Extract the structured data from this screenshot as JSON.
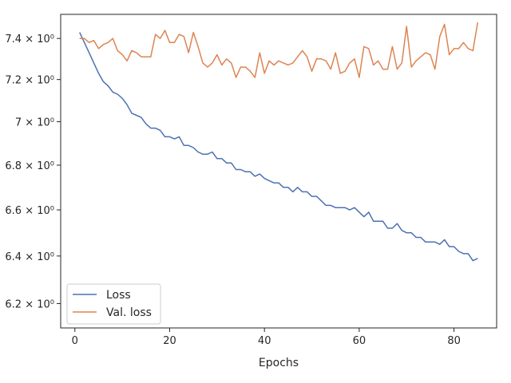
{
  "chart_data": {
    "type": "line",
    "title": "",
    "xlabel": "Epochs",
    "ylabel": "",
    "xlim": [
      -3,
      89
    ],
    "ylim": [
      6.1,
      7.52
    ],
    "yscale": "log",
    "grid": false,
    "legend_position": "lower-left",
    "x_ticks": [
      0,
      20,
      40,
      60,
      80
    ],
    "x_tick_labels": [
      "0",
      "20",
      "40",
      "60",
      "80"
    ],
    "y_ticks": [
      6.2,
      6.4,
      6.6,
      6.8,
      7.0,
      7.2,
      7.4
    ],
    "y_tick_labels": [
      "6.2 × 10⁰",
      "6.4 × 10⁰",
      "6.6 × 10⁰",
      "6.8 × 10⁰",
      "7 × 10⁰",
      "7.2 × 10⁰",
      "7.4 × 10⁰"
    ],
    "x": [
      1,
      2,
      3,
      4,
      5,
      6,
      7,
      8,
      9,
      10,
      11,
      12,
      13,
      14,
      15,
      16,
      17,
      18,
      19,
      20,
      21,
      22,
      23,
      24,
      25,
      26,
      27,
      28,
      29,
      30,
      31,
      32,
      33,
      34,
      35,
      36,
      37,
      38,
      39,
      40,
      41,
      42,
      43,
      44,
      45,
      46,
      47,
      48,
      49,
      50,
      51,
      52,
      53,
      54,
      55,
      56,
      57,
      58,
      59,
      60,
      61,
      62,
      63,
      64,
      65,
      66,
      67,
      68,
      69,
      70,
      71,
      72,
      73,
      74,
      75,
      76,
      77,
      78,
      79,
      80,
      81,
      82,
      83,
      84,
      85
    ],
    "series": [
      {
        "name": "Loss",
        "color": "#4c72b0",
        "values": [
          7.43,
          7.38,
          7.33,
          7.28,
          7.23,
          7.19,
          7.17,
          7.14,
          7.13,
          7.11,
          7.08,
          7.04,
          7.03,
          7.02,
          6.99,
          6.97,
          6.97,
          6.96,
          6.93,
          6.93,
          6.92,
          6.93,
          6.89,
          6.89,
          6.88,
          6.86,
          6.85,
          6.85,
          6.86,
          6.83,
          6.83,
          6.81,
          6.81,
          6.78,
          6.78,
          6.77,
          6.77,
          6.75,
          6.76,
          6.74,
          6.73,
          6.72,
          6.72,
          6.7,
          6.7,
          6.68,
          6.7,
          6.68,
          6.68,
          6.66,
          6.66,
          6.64,
          6.62,
          6.62,
          6.61,
          6.61,
          6.61,
          6.6,
          6.61,
          6.59,
          6.57,
          6.59,
          6.55,
          6.55,
          6.55,
          6.52,
          6.52,
          6.54,
          6.51,
          6.5,
          6.5,
          6.48,
          6.48,
          6.46,
          6.46,
          6.46,
          6.45,
          6.47,
          6.44,
          6.44,
          6.42,
          6.41,
          6.41,
          6.38,
          6.39
        ]
      },
      {
        "name": "Val. loss",
        "color": "#dd8452",
        "values": [
          7.4,
          7.4,
          7.38,
          7.39,
          7.35,
          7.37,
          7.38,
          7.4,
          7.34,
          7.32,
          7.29,
          7.34,
          7.33,
          7.31,
          7.31,
          7.31,
          7.42,
          7.4,
          7.44,
          7.38,
          7.38,
          7.42,
          7.41,
          7.33,
          7.43,
          7.36,
          7.28,
          7.26,
          7.28,
          7.32,
          7.27,
          7.3,
          7.28,
          7.21,
          7.26,
          7.26,
          7.24,
          7.21,
          7.33,
          7.23,
          7.29,
          7.27,
          7.29,
          7.28,
          7.27,
          7.28,
          7.31,
          7.34,
          7.31,
          7.24,
          7.3,
          7.3,
          7.29,
          7.25,
          7.33,
          7.23,
          7.24,
          7.28,
          7.3,
          7.21,
          7.36,
          7.35,
          7.27,
          7.29,
          7.25,
          7.25,
          7.36,
          7.25,
          7.28,
          7.46,
          7.26,
          7.29,
          7.31,
          7.33,
          7.32,
          7.25,
          7.41,
          7.47,
          7.32,
          7.35,
          7.35,
          7.38,
          7.35,
          7.34,
          7.48
        ]
      }
    ]
  }
}
